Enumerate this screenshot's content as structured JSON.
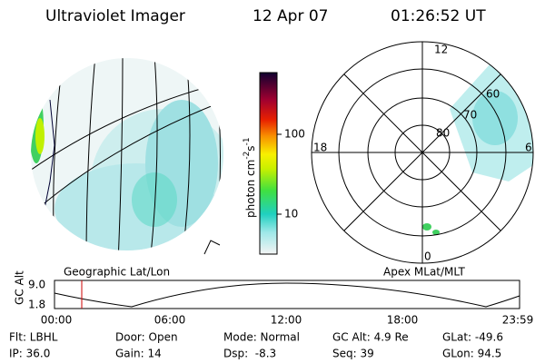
{
  "header": {
    "title": "Ultraviolet Imager",
    "date": "12 Apr 07",
    "time": "01:26:52 UT"
  },
  "colorbar": {
    "label": "photon cm",
    "label_exp1": "-2",
    "label_mid": "s",
    "label_exp2": "-1",
    "ticks": [
      "100",
      "10"
    ]
  },
  "polar": {
    "labels": {
      "top": "12",
      "left": "18",
      "right": "6",
      "bottom": "0"
    },
    "rings": [
      "80",
      "70",
      "60"
    ]
  },
  "captions": {
    "left": "Geographic Lat/Lon",
    "right": "Apex MLat/MLT"
  },
  "altitude": {
    "label": "GC Alt",
    "ticks": [
      "9.0",
      "1.8"
    ],
    "times": [
      "00:00",
      "06:00",
      "12:00",
      "18:00",
      "23:59"
    ]
  },
  "info": [
    [
      "Flt: LBHL",
      "Door: Open",
      "Mode: Normal",
      "GC Alt: 4.9 Re",
      "GLat: -49.6"
    ],
    [
      "IP: 36.0",
      "Gain: 14",
      "Dsp:  -8.3",
      "Seq: 39",
      "GLon: 94.5"
    ]
  ]
}
